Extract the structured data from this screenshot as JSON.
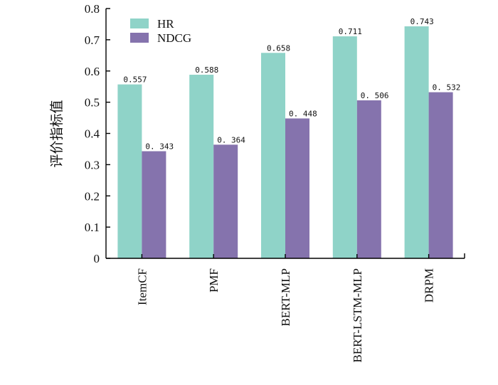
{
  "chart_data": {
    "type": "bar",
    "title": "",
    "xlabel": "",
    "ylabel": "评价指标值",
    "ylim": [
      0,
      0.8
    ],
    "yticks": [
      "0",
      "0.1",
      "0.2",
      "0.3",
      "0.4",
      "0.5",
      "0.6",
      "0.7",
      "0.8"
    ],
    "legend_position": "top-left",
    "grid": false,
    "categories": [
      "ItemCF",
      "PMF",
      "BERT-MLP",
      "BERT-LSTM-MLP",
      "DRPM"
    ],
    "series": [
      {
        "name": "HR",
        "color": "#8fd3c8",
        "values": [
          0.557,
          0.588,
          0.658,
          0.711,
          0.743
        ],
        "labels": [
          "0.557",
          "0.588",
          "0.658",
          "0.711",
          "0.743"
        ]
      },
      {
        "name": "NDCG",
        "color": "#8573ad",
        "values": [
          0.343,
          0.364,
          0.448,
          0.506,
          0.532
        ],
        "labels": [
          "0. 343",
          "0. 364",
          "0. 448",
          "0. 506",
          "0. 532"
        ]
      }
    ]
  }
}
